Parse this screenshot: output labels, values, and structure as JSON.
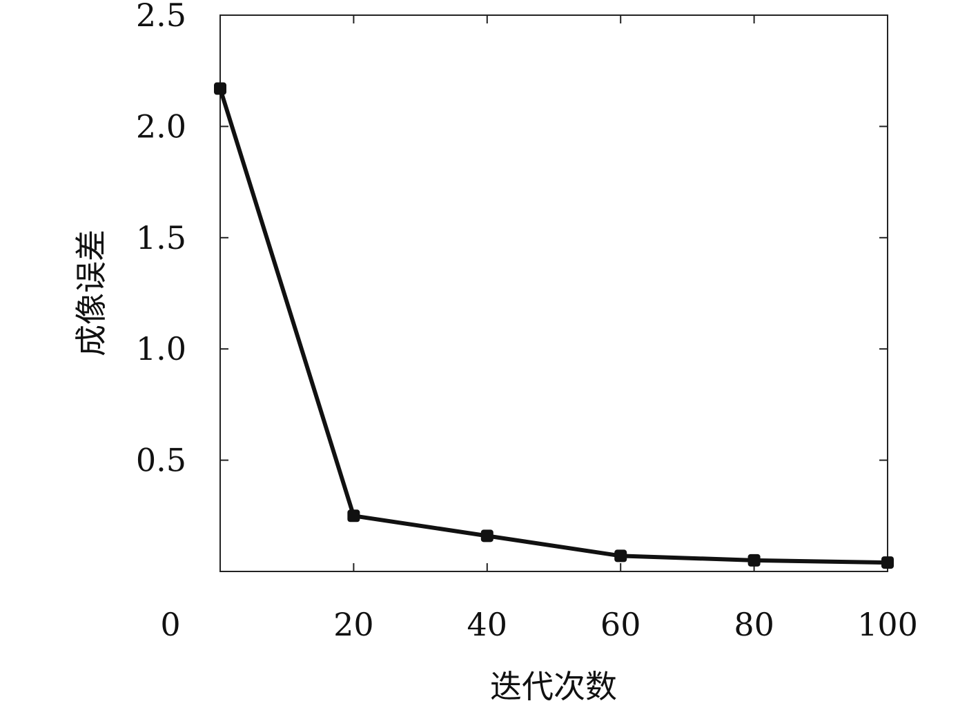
{
  "chart_data": {
    "type": "line",
    "xlabel": "迭代次数",
    "ylabel": "成像误差",
    "xlim": [
      0,
      100
    ],
    "ylim": [
      0,
      2.5
    ],
    "x_ticks": [
      {
        "value": 0,
        "label": "0"
      },
      {
        "value": 20,
        "label": "20"
      },
      {
        "value": 40,
        "label": "40"
      },
      {
        "value": 60,
        "label": "60"
      },
      {
        "value": 80,
        "label": "80"
      },
      {
        "value": 100,
        "label": "100"
      }
    ],
    "y_ticks": [
      {
        "value": 0.5,
        "label": "0.5"
      },
      {
        "value": 1.0,
        "label": "1.0"
      },
      {
        "value": 1.5,
        "label": "1.5"
      },
      {
        "value": 2.0,
        "label": "2.0"
      },
      {
        "value": 2.5,
        "label": "2.5"
      }
    ],
    "grid": false,
    "legend": "none",
    "series": [
      {
        "color": "#111111",
        "marker": "square",
        "x": [
          0,
          20,
          40,
          60,
          80,
          100
        ],
        "y": [
          2.17,
          0.25,
          0.16,
          0.07,
          0.05,
          0.04
        ]
      }
    ]
  }
}
